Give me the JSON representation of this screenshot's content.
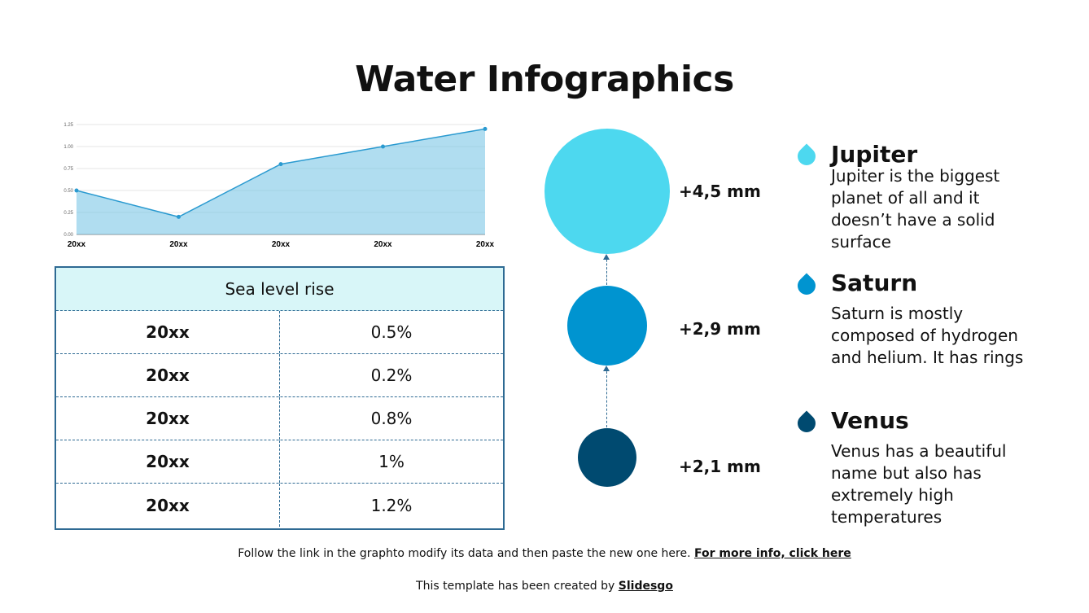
{
  "title": "Water Infographics",
  "chart_data": {
    "type": "area",
    "categories": [
      "20xx",
      "20xx",
      "20xx",
      "20xx",
      "20xx"
    ],
    "values": [
      0.5,
      0.2,
      0.8,
      1.0,
      1.2
    ],
    "ylim": [
      0,
      1.25
    ],
    "yticks": [
      "0.00",
      "0.25",
      "0.50",
      "0.75",
      "1.00",
      "1.25"
    ],
    "grid": true,
    "color": "#7cc6e6",
    "line_color": "#2a9ad0"
  },
  "table": {
    "header": "Sea level rise",
    "rows": [
      [
        "20xx",
        "0.5%"
      ],
      [
        "20xx",
        "0.2%"
      ],
      [
        "20xx",
        "0.8%"
      ],
      [
        "20xx",
        "1%"
      ],
      [
        "20xx",
        "1.2%"
      ]
    ]
  },
  "circles": [
    {
      "label": "+4,5 mm",
      "color": "#4dd8ef"
    },
    {
      "label": "+2,9 mm",
      "color": "#0094d0"
    },
    {
      "label": "+2,1 mm",
      "color": "#004a70"
    }
  ],
  "items": [
    {
      "name": "Jupiter",
      "desc": "Jupiter is the biggest planet of all and it doesn’t have a solid surface",
      "color": "#4dd8ef"
    },
    {
      "name": "Saturn",
      "desc": "Saturn is mostly composed of hydrogen and helium. It has rings",
      "color": "#0094d0"
    },
    {
      "name": "Venus",
      "desc": "Venus has a beautiful name but also has extremely high temperatures",
      "color": "#004a70"
    }
  ],
  "footer": {
    "text": "Follow the link in the graphto modify its data and then paste the new one here.",
    "link": "For more info, click here",
    "credit": "This template has been created by",
    "brand": "Slidesgo"
  }
}
